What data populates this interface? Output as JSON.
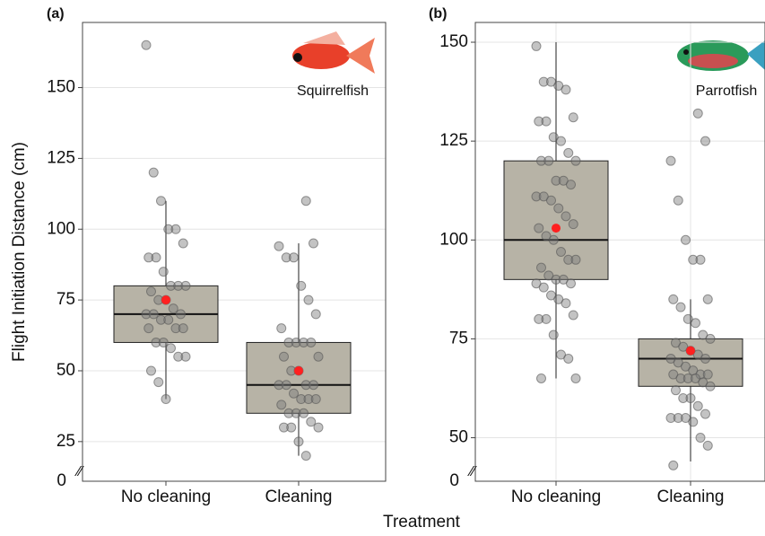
{
  "chart_data": [
    {
      "type": "box",
      "panel_label": "(a)",
      "annotation": "Squirrelfish",
      "ylabel": "Flight Initiation Distance (cm)",
      "xlabel": "Treatment",
      "axis_break_label": "0",
      "categories": [
        "No cleaning",
        "Cleaning"
      ],
      "ylim": [
        11,
        173
      ],
      "yticks": [
        25,
        50,
        75,
        100,
        125,
        150
      ],
      "grid": true,
      "box_color": "#b7b3a6",
      "point_color": "#7a7a7a",
      "mean_color": "#ff2020",
      "boxes": [
        {
          "min": 40,
          "q1": 60,
          "median": 70,
          "q3": 80,
          "max": 110,
          "mean": 75,
          "points": [
            165,
            120,
            110,
            100,
            100,
            95,
            90,
            90,
            85,
            80,
            80,
            80,
            78,
            75,
            75,
            72,
            70,
            70,
            70,
            68,
            68,
            65,
            65,
            65,
            60,
            60,
            58,
            55,
            55,
            50,
            46,
            40
          ]
        },
        {
          "min": 20,
          "q1": 35,
          "median": 45,
          "q3": 60,
          "max": 95,
          "mean": 50,
          "points": [
            110,
            95,
            94,
            90,
            90,
            80,
            75,
            70,
            65,
            60,
            60,
            60,
            60,
            55,
            55,
            50,
            50,
            45,
            45,
            45,
            45,
            42,
            40,
            40,
            40,
            38,
            35,
            35,
            35,
            32,
            30,
            30,
            30,
            25,
            20
          ]
        }
      ]
    },
    {
      "type": "box",
      "panel_label": "(b)",
      "annotation": "Parrotfish",
      "axis_break_label": "0",
      "categories": [
        "No cleaning",
        "Cleaning"
      ],
      "ylim": [
        39,
        155
      ],
      "yticks": [
        50,
        75,
        100,
        125,
        150
      ],
      "grid": true,
      "box_color": "#b7b3a6",
      "point_color": "#7a7a7a",
      "mean_color": "#ff2020",
      "boxes": [
        {
          "min": 65,
          "q1": 90,
          "median": 100,
          "q3": 120,
          "max": 150,
          "mean": 103,
          "points": [
            149,
            140,
            140,
            139,
            138,
            131,
            130,
            130,
            126,
            125,
            122,
            120,
            120,
            120,
            115,
            115,
            114,
            111,
            111,
            110,
            108,
            106,
            104,
            103,
            101,
            100,
            97,
            95,
            95,
            93,
            91,
            90,
            90,
            89,
            89,
            88,
            86,
            85,
            84,
            81,
            80,
            80,
            76,
            71,
            70,
            65,
            65
          ]
        },
        {
          "min": 44,
          "q1": 63,
          "median": 70,
          "q3": 75,
          "max": 85,
          "mean": 72,
          "points": [
            132,
            125,
            120,
            110,
            100,
            95,
            95,
            85,
            85,
            83,
            80,
            79,
            76,
            75,
            74,
            73,
            72,
            71,
            70,
            70,
            69,
            68,
            67,
            66,
            66,
            66,
            65,
            65,
            65,
            64,
            63,
            62,
            60,
            60,
            58,
            56,
            55,
            55,
            55,
            54,
            50,
            48,
            43
          ]
        }
      ]
    }
  ]
}
